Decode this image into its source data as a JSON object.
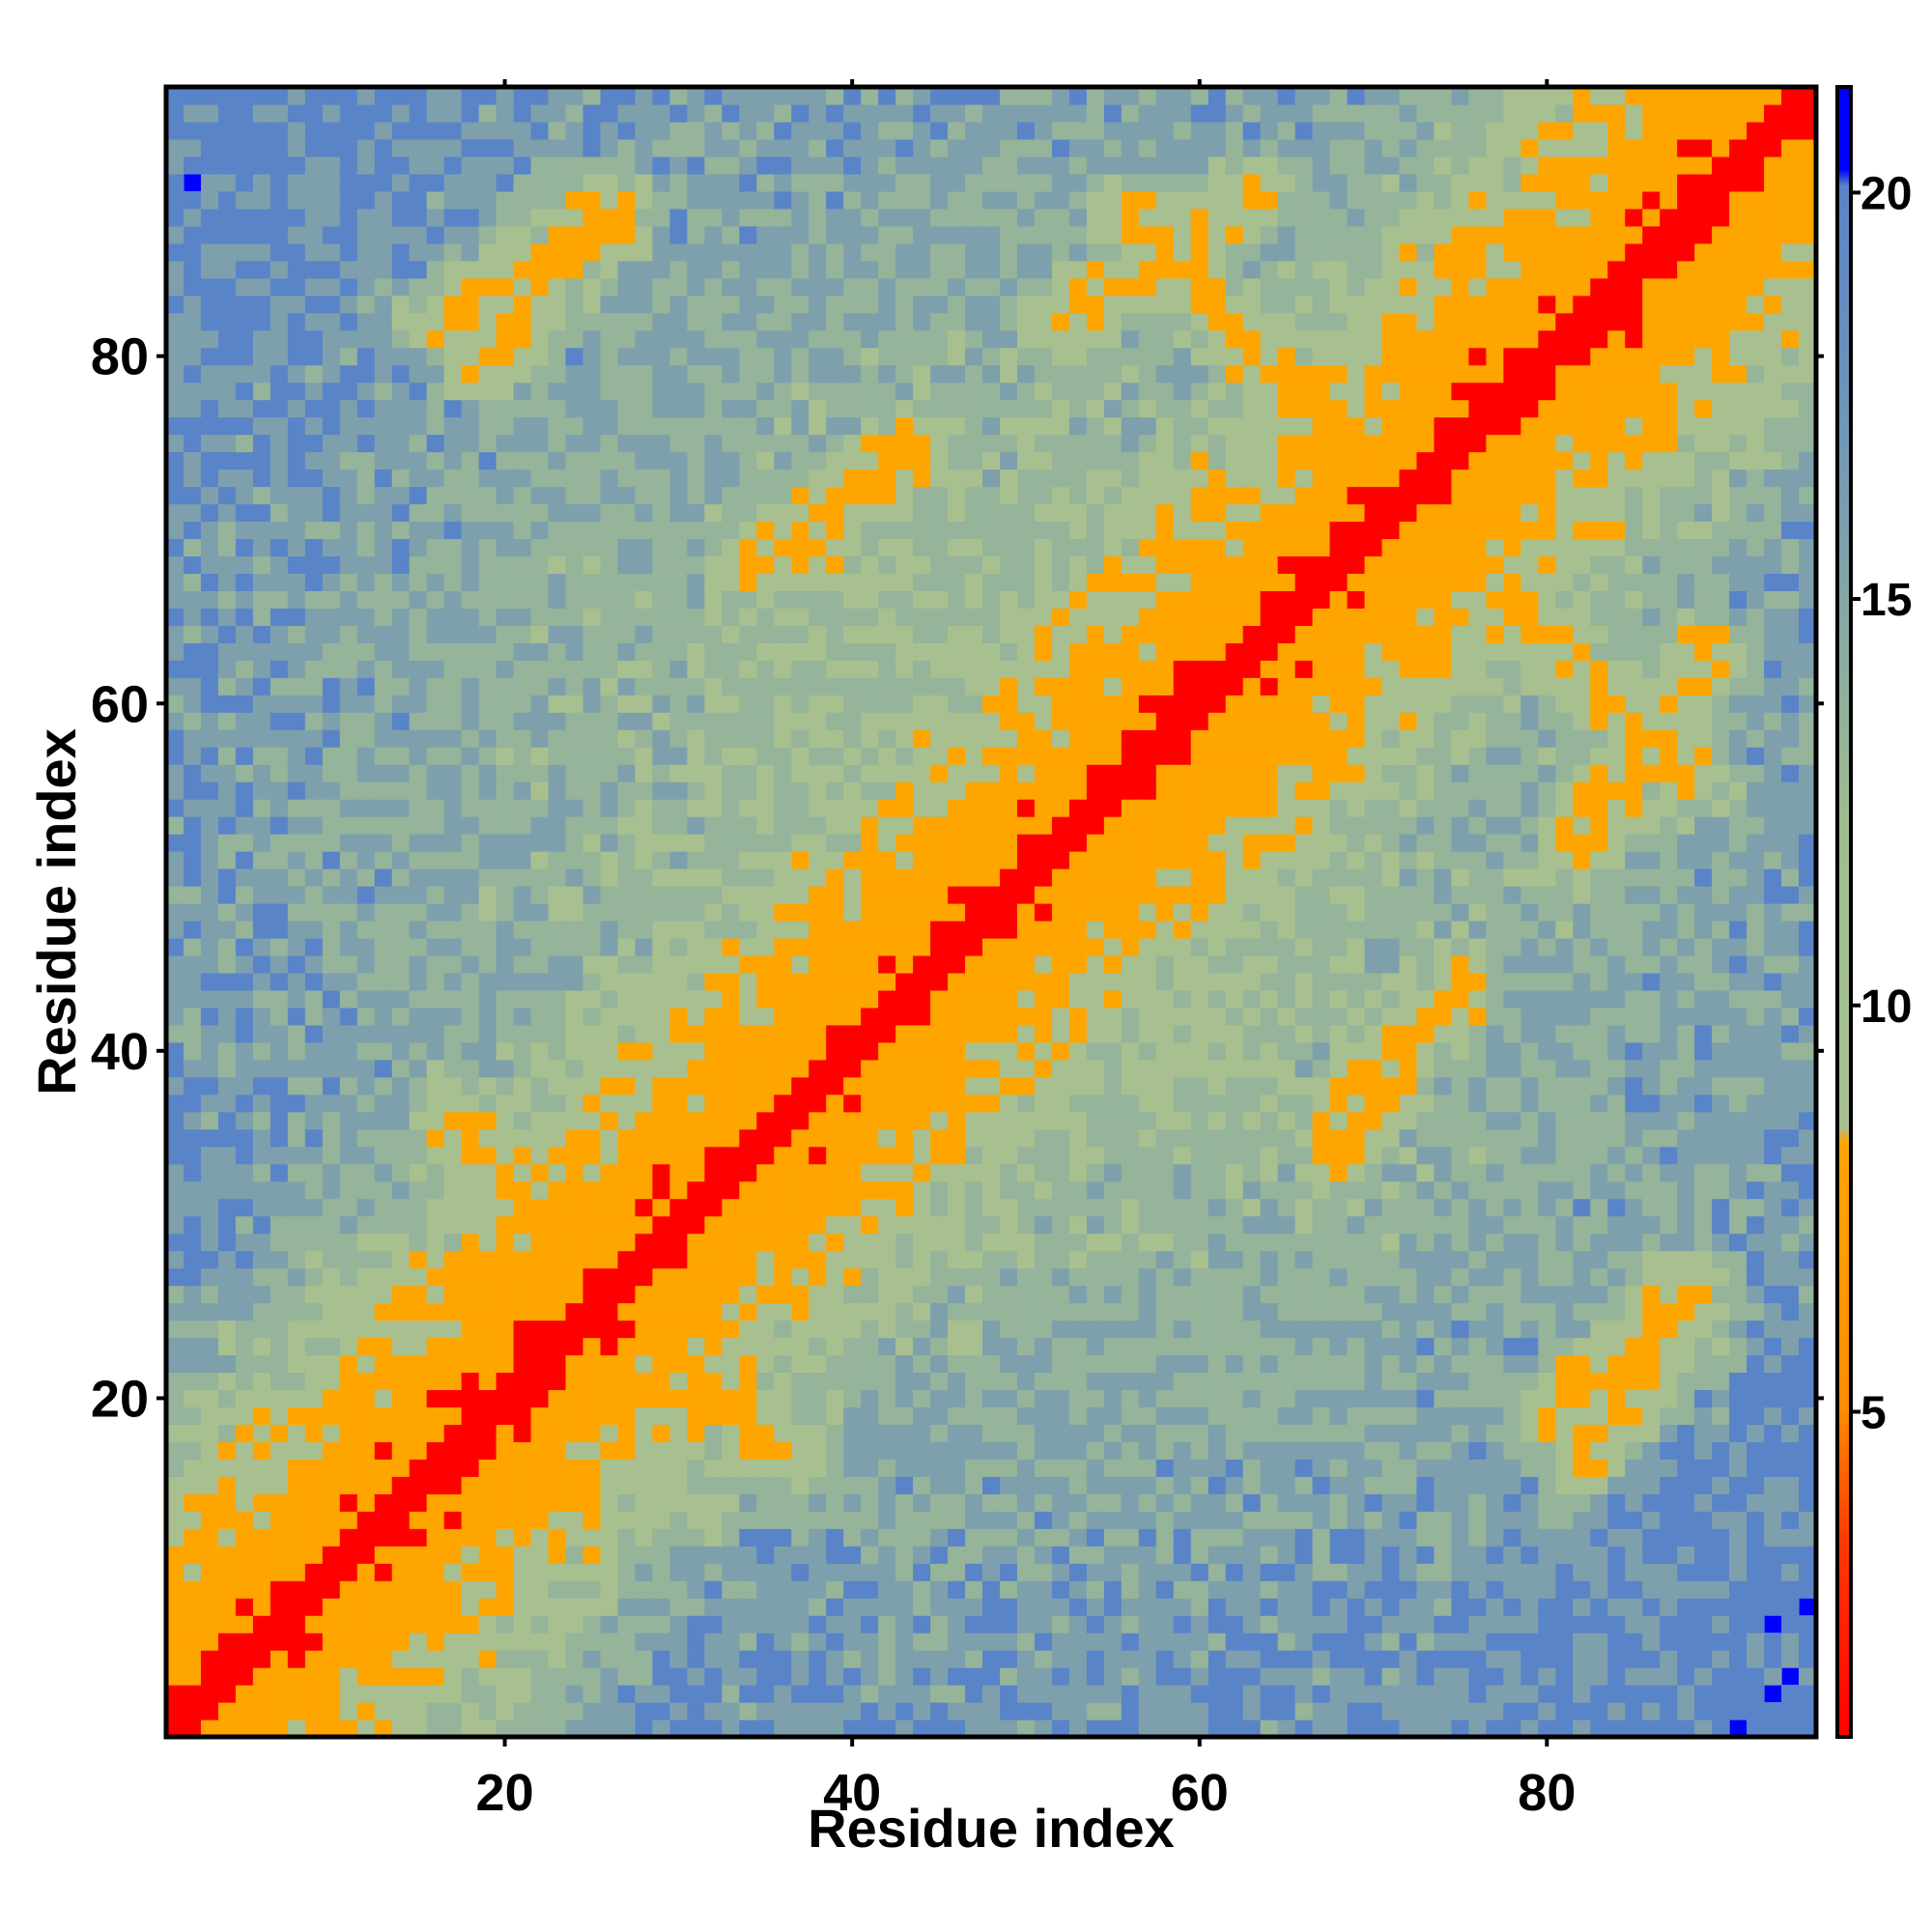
{
  "chart_data": {
    "type": "heatmap",
    "title": "",
    "xlabel": "Residue index",
    "ylabel": "Residue index",
    "x_range": [
      1,
      95
    ],
    "y_range": [
      1,
      95
    ],
    "x_ticks": [
      20,
      40,
      60,
      80
    ],
    "y_ticks": [
      20,
      40,
      60,
      80
    ],
    "colorbar_ticks": [
      5,
      10,
      15,
      20
    ],
    "colorbar_range": [
      1,
      21.3
    ],
    "grid": false,
    "colors": {
      "near": "#ff0000",
      "mid": "#ffa500",
      "far_light": "#a8c090",
      "far": "#5a84c8",
      "background": "#0000ff"
    },
    "contact_features": {
      "diagonal": "distance ~1-2 along i = j",
      "helix_band": "distance ~5-8 for |i-j| around 2-4, residues 1-65",
      "antiparallel_contacts": [
        {
          "residues_a": [
            17,
            35
          ],
          "residues_b": [
            36,
            18
          ],
          "distance": 6
        },
        {
          "residues_a": [
            24,
            38
          ],
          "residues_b": [
            23,
            30
          ],
          "distance": 6
        },
        {
          "residues_a": [
            17,
            26
          ],
          "residues_b": [
            82,
            88
          ],
          "distance": 6
        },
        {
          "residues_a": [
            34,
            44
          ],
          "residues_b": [
            68,
            75
          ],
          "distance": 6
        },
        {
          "residues_a": [
            56,
            67
          ],
          "residues_b": [
            88,
            76
          ],
          "distance": 6
        },
        {
          "residues_a": [
            80,
            88
          ],
          "residues_b": [
            19,
            25
          ],
          "distance": 6
        },
        {
          "residues_a": [
            68,
            75
          ],
          "residues_b": [
            37,
            43
          ],
          "distance": 6
        },
        {
          "residues_a": [
            82,
            89
          ],
          "residues_b": [
            52,
            63
          ],
          "distance": 6
        }
      ]
    }
  }
}
